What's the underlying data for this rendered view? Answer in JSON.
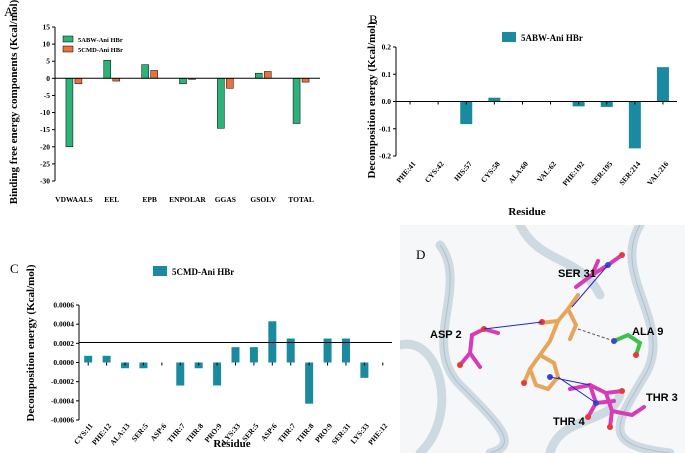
{
  "chart_data": [
    {
      "panel": "A",
      "type": "bar",
      "ylabel": "Binding free energy components (Kcal/mol)",
      "ylim": [
        -30,
        15
      ],
      "yticks": [
        -30,
        -25,
        -20,
        -15,
        -10,
        -5,
        0,
        5,
        10,
        15
      ],
      "categories": [
        "VDWAALS",
        "EEL",
        "EPB",
        "ENPOLAR",
        "GGAS",
        "GSOLV",
        "TOTAL"
      ],
      "series": [
        {
          "name": "5ABW-Ani HBr",
          "color": "#2db37a",
          "values": [
            -20.0,
            5.3,
            4.0,
            -1.6,
            -14.6,
            1.5,
            -13.2
          ]
        },
        {
          "name": "5CMD-Ani HBr",
          "color": "#e8733a",
          "values": [
            -1.6,
            -0.8,
            2.3,
            -0.3,
            -2.9,
            2.0,
            -1.1
          ]
        }
      ]
    },
    {
      "panel": "B",
      "type": "bar",
      "ylabel": "Decomposition energy (Kcal/mol)",
      "xlabel": "Residue",
      "ylim": [
        -0.2,
        0.2
      ],
      "yticks": [
        -0.2,
        -0.1,
        0.0,
        0.1,
        0.2
      ],
      "yticklabels": [
        "-0.2",
        "-0.1",
        "0.0",
        "0.1",
        "0.2"
      ],
      "categories": [
        "PHE:41",
        "CYS:42",
        "HIS:57",
        "CYS:58",
        "ALA:60",
        "VAL:62",
        "PHE:192",
        "SER:195",
        "SER:214",
        "VAL:216"
      ],
      "series": [
        {
          "name": "5ABW-Ani HBr",
          "color": "#1a8aa0",
          "values": [
            0.0,
            0.0,
            -0.083,
            0.014,
            0.0,
            0.0,
            -0.018,
            -0.02,
            -0.172,
            0.126
          ]
        }
      ]
    },
    {
      "panel": "C",
      "type": "bar",
      "ylabel": "Decomposition energy (Kcal/mol)",
      "xlabel": "Residue",
      "ylim": [
        -0.0006,
        0.0006
      ],
      "yticks": [
        -0.0006,
        -0.0004,
        -0.0002,
        0.0,
        0.0002,
        0.0004,
        0.0006
      ],
      "yticklabels": [
        "-0.0006",
        "-0.0004",
        "-0.0002",
        "0.0000",
        "0.0002",
        "0.0004",
        "0.0006"
      ],
      "categories": [
        "CYS:11",
        "PHE:12",
        "ALA:13",
        "SER:5",
        "ASP:6",
        "THR:7",
        "THR:8",
        "PRO:9",
        "LYS:33",
        "SER:5",
        "ASP:6",
        "THR:7",
        "THR:8",
        "PRO:9",
        "SER:31",
        "LYS:33",
        "PHE:12"
      ],
      "series": [
        {
          "name": "5CMD-Ani HBr",
          "color": "#1a8aa0",
          "values": [
            7e-05,
            7e-05,
            -6e-05,
            -6e-05,
            0.0,
            -0.00024,
            -6e-05,
            -0.00024,
            0.00016,
            0.00016,
            0.00043,
            0.00025,
            -0.00043,
            0.00025,
            0.00025,
            -0.00016,
            0.0
          ]
        }
      ]
    }
  ],
  "panel_d": {
    "label": "D",
    "residues": [
      "SER 31",
      "ASP 2",
      "ALA 9",
      "THR 3",
      "THR 4"
    ]
  }
}
